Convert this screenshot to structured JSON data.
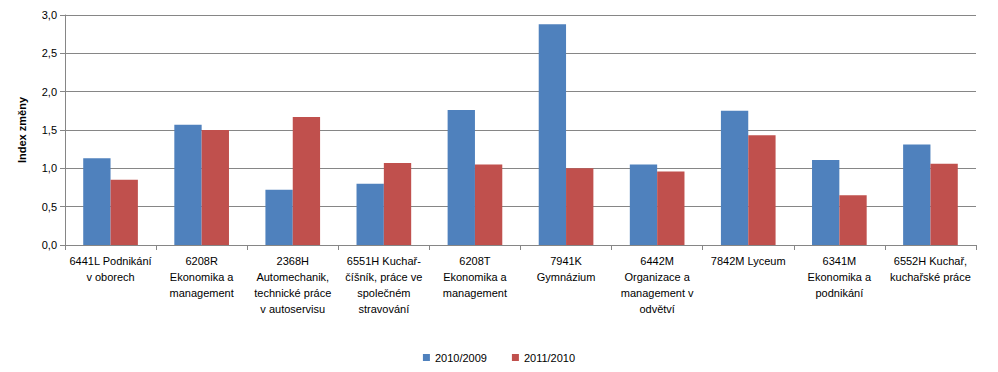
{
  "chart_data": {
    "type": "bar",
    "y_label": "Index změny",
    "categories": [
      "6441L Podnikání\nv oborech",
      "6208R\nEkonomika a\nmanagement",
      "2368H\nAutomechanik,\ntechnické práce\nv autoservisu",
      "6551H Kuchař-\nčíšník, práce ve\nspolečném\nstravování",
      "6208T\nEkonomika a\nmanagement",
      "7941K\nGymnázium",
      "6442M\nOrganizace a\nmanagement v\nodvětví",
      "7842M Lyceum",
      "6341M\nEkonomika a\npodnikání",
      "6552H Kuchař,\nkuchařské práce"
    ],
    "series": [
      {
        "name": "2010/2009",
        "color": "#4f81bd",
        "values": [
          1.13,
          1.57,
          0.72,
          0.8,
          1.76,
          2.88,
          1.05,
          1.75,
          1.11,
          1.31
        ]
      },
      {
        "name": "2011/2010",
        "color": "#c0504d",
        "values": [
          0.85,
          1.5,
          1.67,
          1.07,
          1.05,
          1.0,
          0.96,
          1.43,
          0.65,
          1.06
        ]
      }
    ],
    "ylim": [
      0,
      3
    ],
    "yticks": [
      {
        "value": 0,
        "label": "0,0"
      },
      {
        "value": 0.5,
        "label": "0,5"
      },
      {
        "value": 1,
        "label": "1,0"
      },
      {
        "value": 1.5,
        "label": "1,5"
      },
      {
        "value": 2,
        "label": "2,0"
      },
      {
        "value": 2.5,
        "label": "2,5"
      },
      {
        "value": 3,
        "label": "3,0"
      }
    ],
    "grid": true,
    "legend": "bottom"
  }
}
